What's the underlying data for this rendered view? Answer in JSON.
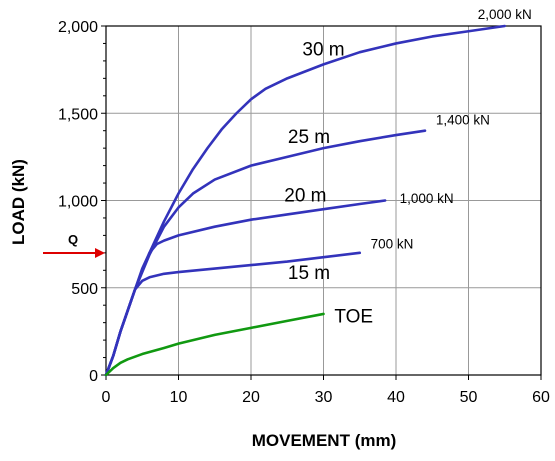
{
  "chart_data": {
    "type": "line",
    "xlabel": "MOVEMENT  (mm)",
    "ylabel": "LOAD  (kN)",
    "xlim": [
      0,
      60
    ],
    "ylim": [
      0,
      2000
    ],
    "grid": true,
    "x_ticks": [
      "0",
      "10",
      "20",
      "30",
      "40",
      "50",
      "60"
    ],
    "y_ticks": [
      "0",
      "500",
      "1,000",
      "1,500",
      "2,000"
    ],
    "series": [
      {
        "name": "30 m",
        "color": "#3333bb",
        "end_label": "2,000 kN",
        "points": [
          [
            0,
            0
          ],
          [
            1,
            110
          ],
          [
            2,
            250
          ],
          [
            3,
            370
          ],
          [
            4,
            490
          ],
          [
            6,
            700
          ],
          [
            8,
            880
          ],
          [
            10,
            1040
          ],
          [
            12,
            1180
          ],
          [
            14,
            1300
          ],
          [
            16,
            1410
          ],
          [
            18,
            1500
          ],
          [
            20,
            1580
          ],
          [
            22,
            1640
          ],
          [
            25,
            1700
          ],
          [
            30,
            1780
          ],
          [
            35,
            1850
          ],
          [
            40,
            1900
          ],
          [
            45,
            1940
          ],
          [
            50,
            1970
          ],
          [
            55,
            2000
          ]
        ]
      },
      {
        "name": "25 m",
        "color": "#3333bb",
        "end_label": "1,400 kN",
        "points": [
          [
            0,
            0
          ],
          [
            1,
            110
          ],
          [
            2,
            250
          ],
          [
            3,
            370
          ],
          [
            4,
            490
          ],
          [
            6,
            690
          ],
          [
            8,
            850
          ],
          [
            10,
            960
          ],
          [
            12,
            1040
          ],
          [
            15,
            1120
          ],
          [
            20,
            1200
          ],
          [
            25,
            1250
          ],
          [
            30,
            1300
          ],
          [
            35,
            1340
          ],
          [
            40,
            1375
          ],
          [
            44,
            1400
          ]
        ]
      },
      {
        "name": "20 m",
        "color": "#3333bb",
        "end_label": "1,000 kN",
        "points": [
          [
            0,
            0
          ],
          [
            1,
            110
          ],
          [
            2,
            250
          ],
          [
            3,
            370
          ],
          [
            4,
            490
          ],
          [
            5,
            610
          ],
          [
            6,
            700
          ],
          [
            7,
            750
          ],
          [
            8,
            770
          ],
          [
            10,
            800
          ],
          [
            15,
            850
          ],
          [
            20,
            890
          ],
          [
            25,
            920
          ],
          [
            30,
            950
          ],
          [
            35,
            980
          ],
          [
            38.5,
            1000
          ]
        ]
      },
      {
        "name": "15 m",
        "color": "#3333bb",
        "end_label": "700 kN",
        "points": [
          [
            0,
            0
          ],
          [
            1,
            110
          ],
          [
            2,
            250
          ],
          [
            3,
            370
          ],
          [
            3.5,
            430
          ],
          [
            4,
            490
          ],
          [
            5,
            540
          ],
          [
            6,
            560
          ],
          [
            8,
            580
          ],
          [
            10,
            590
          ],
          [
            15,
            610
          ],
          [
            20,
            630
          ],
          [
            25,
            650
          ],
          [
            30,
            675
          ],
          [
            35,
            700
          ]
        ]
      },
      {
        "name": "TOE",
        "color": "#119911",
        "end_label": "",
        "points": [
          [
            0,
            0
          ],
          [
            1,
            40
          ],
          [
            2,
            70
          ],
          [
            3,
            90
          ],
          [
            5,
            120
          ],
          [
            8,
            155
          ],
          [
            10,
            180
          ],
          [
            15,
            230
          ],
          [
            20,
            270
          ],
          [
            25,
            310
          ],
          [
            30,
            350
          ]
        ]
      }
    ],
    "annotations": {
      "q_label": "Q",
      "q_value": 700,
      "q_arrow_color": "#dd0000"
    }
  }
}
